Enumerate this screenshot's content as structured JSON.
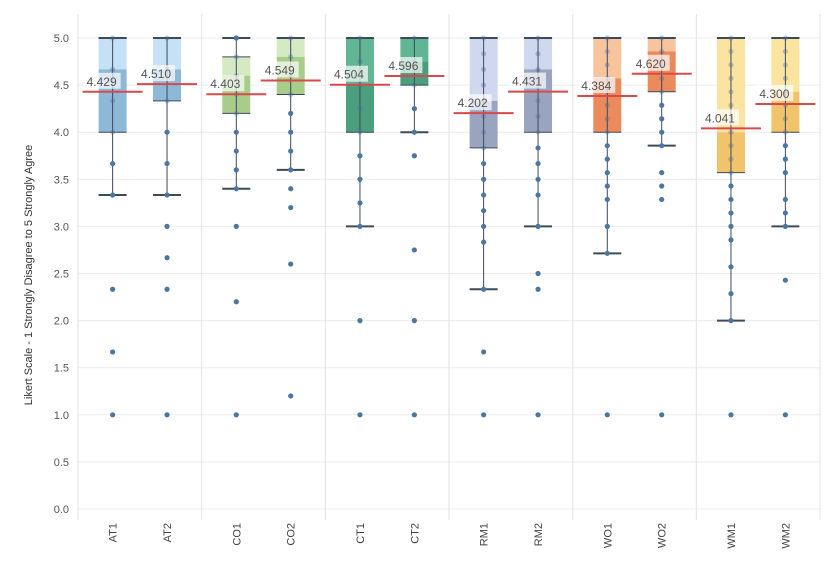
{
  "chart_data": {
    "type": "boxplot",
    "ylabel": "Likert Scale - 1 Strongly Disagree to 5 Strongly Agree",
    "ylim": [
      0,
      5
    ],
    "yticks": [
      "0.0",
      "0.5",
      "1.0",
      "1.5",
      "2.0",
      "2.5",
      "3.0",
      "3.5",
      "4.0",
      "4.5",
      "5.0"
    ],
    "grid": true,
    "reference_line_color": "#d9484b",
    "groups": [
      {
        "name": "AT",
        "items": [
          {
            "label": "AT1",
            "mean": 4.429,
            "mean_label": "4.429",
            "q1": 4.0,
            "median": 4.667,
            "q3": 5.0,
            "whisker_low": 3.333,
            "whisker_high": 5.0,
            "upper_color": "#c6e0f5",
            "lower_color": "#8db8d6",
            "points": [
              1.0,
              1.667,
              2.333,
              3.333,
              3.667,
              4.0,
              4.333,
              4.667,
              5.0
            ]
          },
          {
            "label": "AT2",
            "mean": 4.51,
            "mean_label": "4.510",
            "q1": 4.333,
            "median": 4.667,
            "q3": 5.0,
            "whisker_low": 3.333,
            "whisker_high": 5.0,
            "upper_color": "#c6e0f5",
            "lower_color": "#8db8d6",
            "points": [
              1.0,
              2.333,
              2.667,
              3.0,
              3.333,
              3.667,
              4.0,
              4.333,
              4.667,
              5.0
            ]
          }
        ]
      },
      {
        "name": "CO",
        "items": [
          {
            "label": "CO1",
            "mean": 4.403,
            "mean_label": "4.403",
            "q1": 4.2,
            "median": 4.6,
            "q3": 4.8,
            "whisker_low": 3.4,
            "whisker_high": 5.0,
            "upper_color": "#d5e9c2",
            "lower_color": "#a8cc89",
            "points": [
              1.0,
              2.2,
              3.0,
              3.4,
              3.6,
              3.8,
              4.0,
              4.2,
              4.4,
              4.6,
              4.8,
              5.0
            ]
          },
          {
            "label": "CO2",
            "mean": 4.549,
            "mean_label": "4.549",
            "q1": 4.4,
            "median": 4.8,
            "q3": 5.0,
            "whisker_low": 3.6,
            "whisker_high": 5.0,
            "upper_color": "#d5e9c2",
            "lower_color": "#a8cc89",
            "points": [
              1.2,
              2.6,
              3.2,
              3.4,
              3.6,
              3.8,
              4.0,
              4.2,
              4.4,
              4.6,
              4.8,
              5.0
            ]
          }
        ]
      },
      {
        "name": "CT",
        "items": [
          {
            "label": "CT1",
            "mean": 4.504,
            "mean_label": "4.504",
            "q1": 4.0,
            "median": 4.5,
            "q3": 5.0,
            "whisker_low": 3.0,
            "whisker_high": 5.0,
            "upper_color": "#5fb594",
            "lower_color": "#4a9f7e",
            "points": [
              1.0,
              2.0,
              3.0,
              3.25,
              3.5,
              3.75,
              4.0,
              4.25,
              4.5,
              4.75,
              5.0
            ]
          },
          {
            "label": "CT2",
            "mean": 4.596,
            "mean_label": "4.596",
            "q1": 4.5,
            "median": 4.75,
            "q3": 5.0,
            "whisker_low": 4.0,
            "whisker_high": 5.0,
            "upper_color": "#5fb594",
            "lower_color": "#4a9f7e",
            "points": [
              1.0,
              2.0,
              2.75,
              3.75,
              4.0,
              4.25,
              4.5,
              4.75,
              5.0
            ]
          }
        ]
      },
      {
        "name": "RM",
        "items": [
          {
            "label": "RM1",
            "mean": 4.202,
            "mean_label": "4.202",
            "q1": 3.833,
            "median": 4.333,
            "q3": 5.0,
            "whisker_low": 2.333,
            "whisker_high": 5.0,
            "upper_color": "#cfd8ef",
            "lower_color": "#9aa4c0",
            "points": [
              1.0,
              1.667,
              2.333,
              2.833,
              3.0,
              3.167,
              3.333,
              3.5,
              3.667,
              3.833,
              4.0,
              4.167,
              4.333,
              4.5,
              4.667,
              4.833,
              5.0
            ]
          },
          {
            "label": "RM2",
            "mean": 4.431,
            "mean_label": "4.431",
            "q1": 4.0,
            "median": 4.667,
            "q3": 5.0,
            "whisker_low": 3.0,
            "whisker_high": 5.0,
            "upper_color": "#cfd8ef",
            "lower_color": "#9aa4c0",
            "points": [
              1.0,
              2.333,
              2.5,
              3.0,
              3.333,
              3.5,
              3.667,
              3.833,
              4.0,
              4.167,
              4.333,
              4.5,
              4.667,
              4.833,
              5.0
            ]
          }
        ]
      },
      {
        "name": "WO",
        "items": [
          {
            "label": "WO1",
            "mean": 4.384,
            "mean_label": "4.384",
            "q1": 4.0,
            "median": 4.571,
            "q3": 5.0,
            "whisker_low": 2.714,
            "whisker_high": 5.0,
            "upper_color": "#f7c49e",
            "lower_color": "#eb8a5a",
            "points": [
              1.0,
              2.714,
              3.0,
              3.286,
              3.429,
              3.571,
              3.714,
              3.857,
              4.0,
              4.143,
              4.286,
              4.429,
              4.571,
              4.714,
              4.857,
              5.0
            ]
          },
          {
            "label": "WO2",
            "mean": 4.62,
            "mean_label": "4.620",
            "q1": 4.429,
            "median": 4.857,
            "q3": 5.0,
            "whisker_low": 3.857,
            "whisker_high": 5.0,
            "upper_color": "#f7c49e",
            "lower_color": "#eb8a5a",
            "points": [
              1.0,
              3.286,
              3.429,
              3.571,
              3.857,
              4.0,
              4.143,
              4.286,
              4.429,
              4.571,
              4.714,
              4.857,
              5.0
            ]
          }
        ]
      },
      {
        "name": "WM",
        "items": [
          {
            "label": "WM1",
            "mean": 4.041,
            "mean_label": "4.041",
            "q1": 3.571,
            "median": 4.0,
            "q3": 5.0,
            "whisker_low": 2.0,
            "whisker_high": 5.0,
            "upper_color": "#fbe4a0",
            "lower_color": "#f1c36a",
            "points": [
              1.0,
              2.0,
              2.286,
              2.571,
              2.857,
              3.0,
              3.143,
              3.286,
              3.429,
              3.571,
              3.714,
              3.857,
              4.0,
              4.143,
              4.286,
              4.429,
              4.571,
              4.714,
              4.857,
              5.0
            ]
          },
          {
            "label": "WM2",
            "mean": 4.3,
            "mean_label": "4.300",
            "q1": 4.0,
            "median": 4.429,
            "q3": 5.0,
            "whisker_low": 3.0,
            "whisker_high": 5.0,
            "upper_color": "#fbe4a0",
            "lower_color": "#f1c36a",
            "points": [
              1.0,
              2.429,
              3.0,
              3.143,
              3.286,
              3.571,
              3.714,
              3.857,
              4.0,
              4.143,
              4.286,
              4.429,
              4.571,
              4.714,
              4.857,
              5.0
            ]
          }
        ]
      }
    ]
  }
}
